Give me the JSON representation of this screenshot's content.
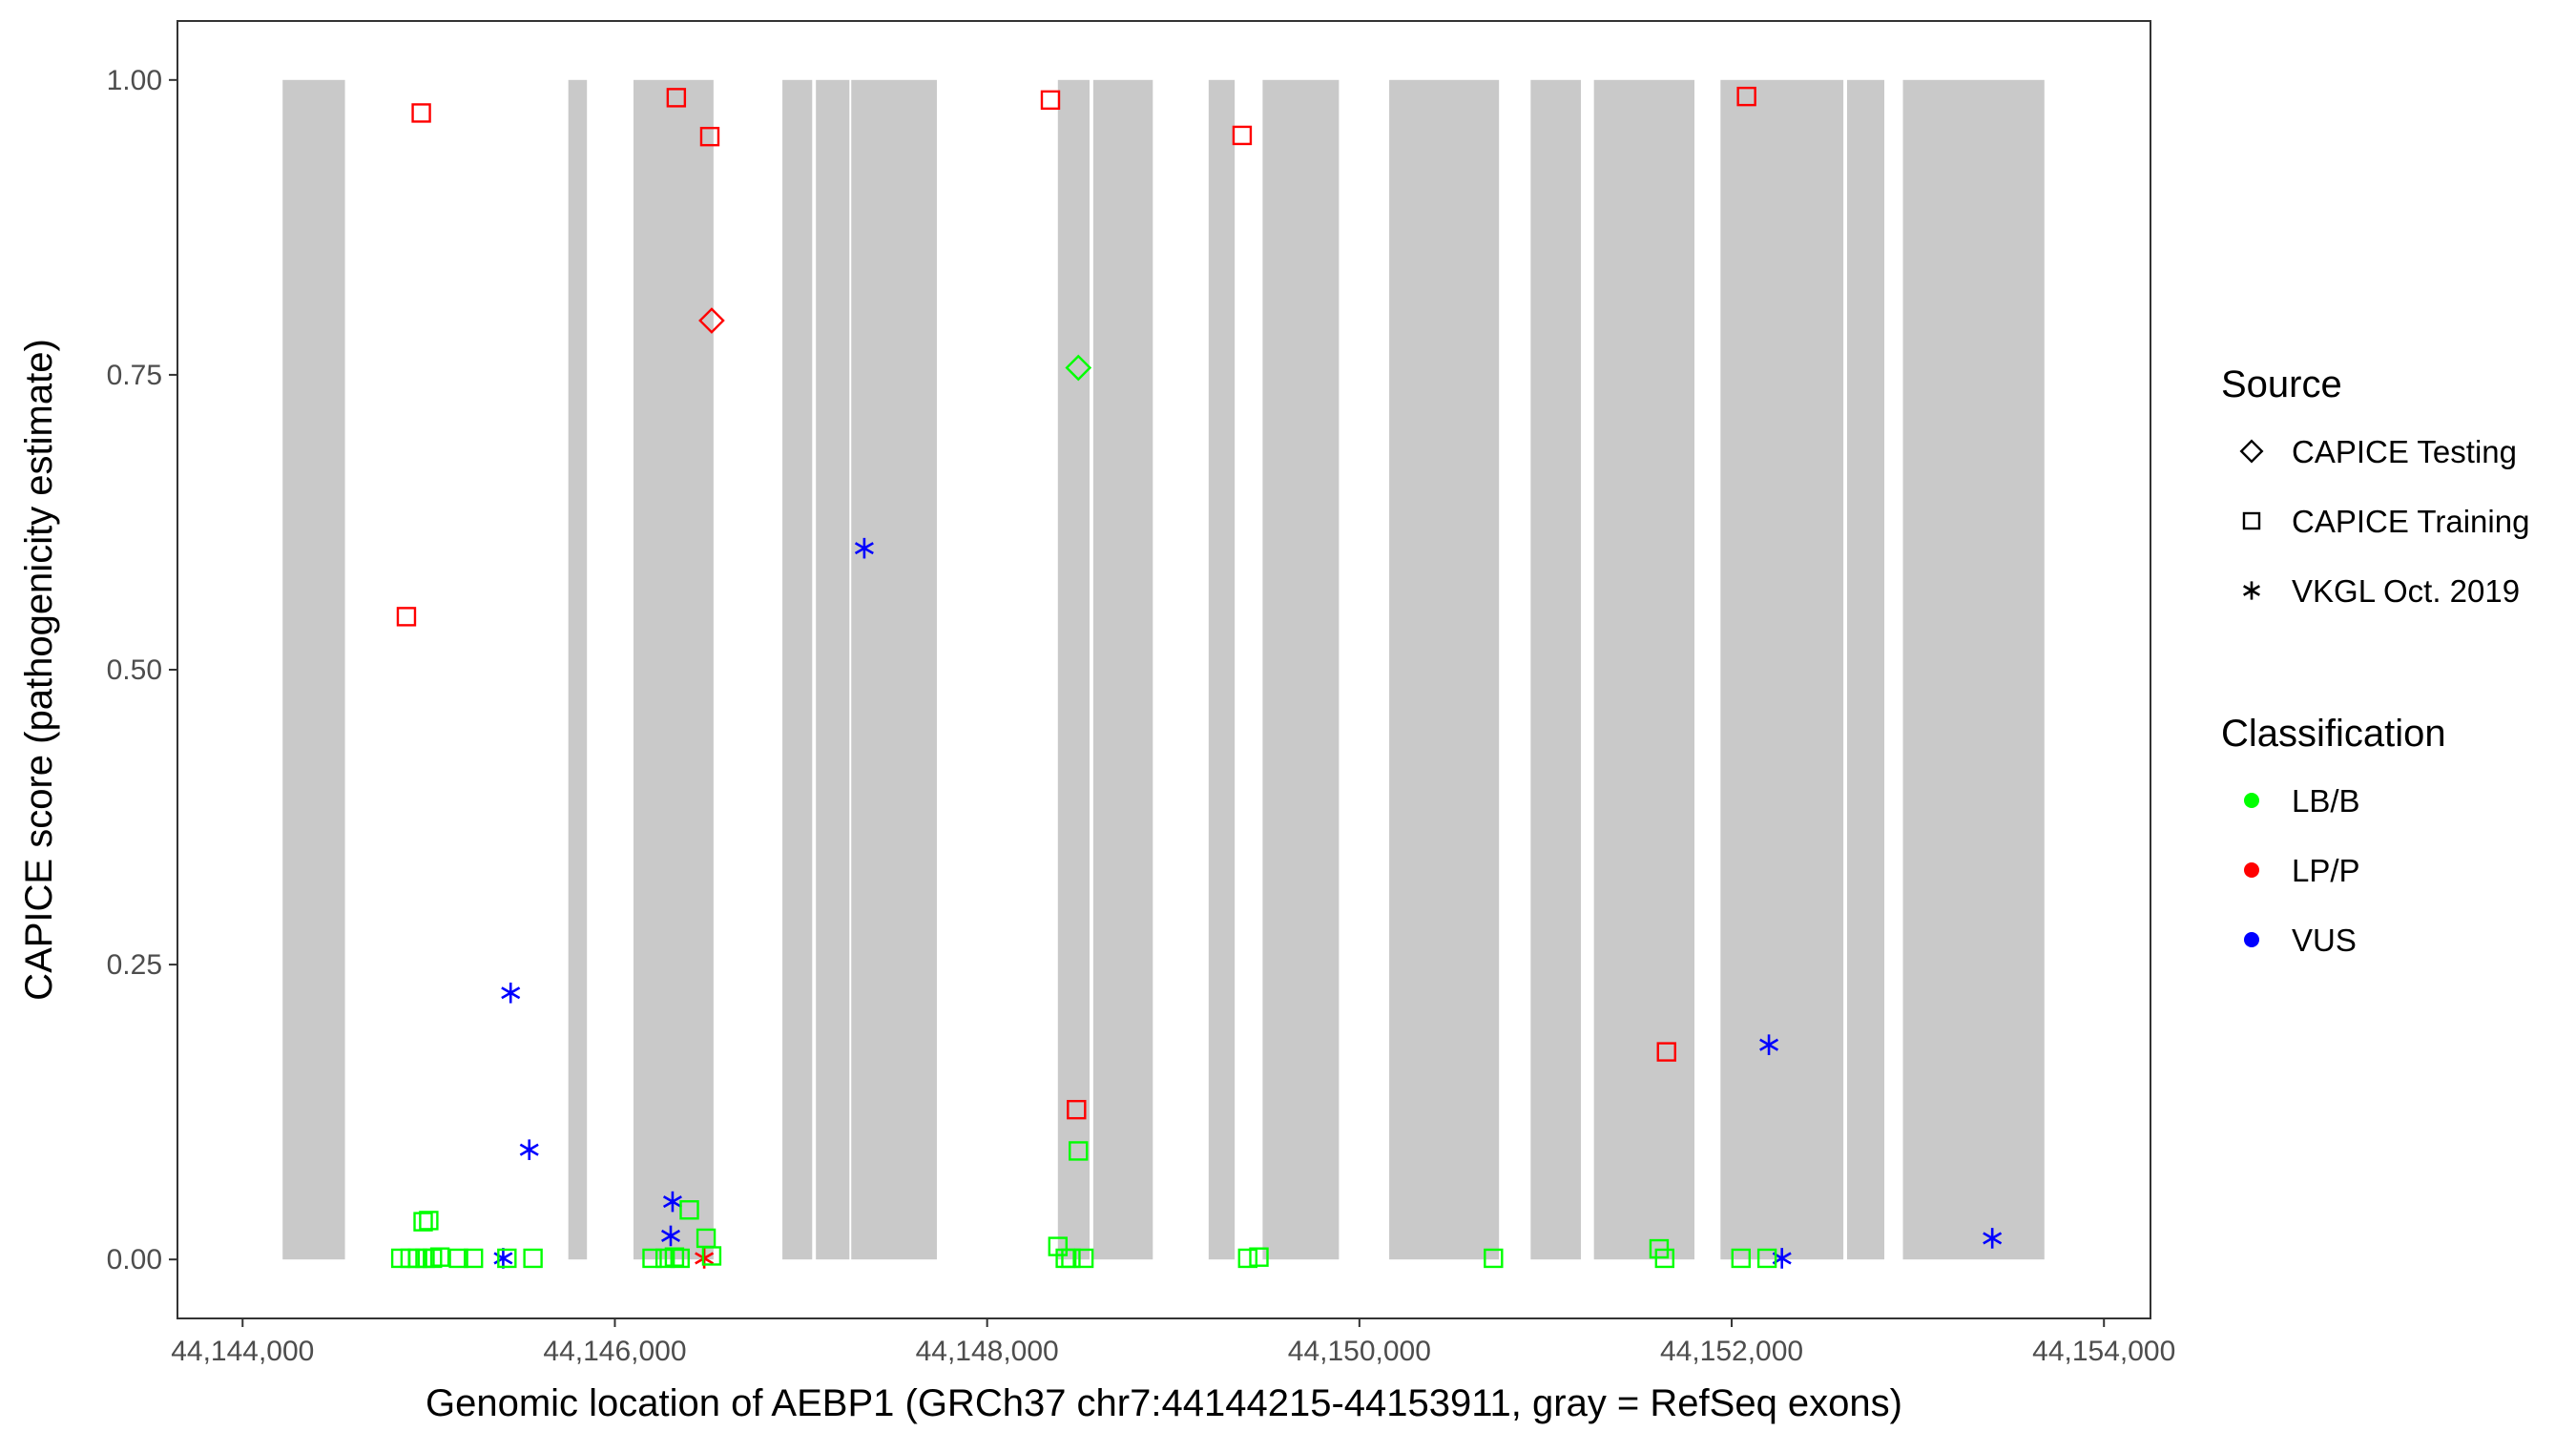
{
  "chart_data": {
    "type": "scatter",
    "title": "",
    "xlabel": "Genomic location of AEBP1 (GRCh37 chr7:44144215-44153911, gray = RefSeq exons)",
    "ylabel": "CAPICE score (pathogenicity estimate)",
    "xlim": [
      44143650,
      44154250
    ],
    "ylim": [
      -0.05,
      1.05
    ],
    "x_ticks": [
      44144000,
      44146000,
      44148000,
      44150000,
      44152000,
      44154000
    ],
    "x_tick_labels": [
      "44,144,000",
      "44,146,000",
      "44,148,000",
      "44,150,000",
      "44,152,000",
      "44,154,000"
    ],
    "y_ticks": [
      0,
      0.25,
      0.5,
      0.75,
      1.0
    ],
    "y_tick_labels": [
      "0.00",
      "0.25",
      "0.50",
      "0.75",
      "1.00"
    ],
    "exons": [
      [
        44144215,
        44144550
      ],
      [
        44145750,
        44145850
      ],
      [
        44146100,
        44146530
      ],
      [
        44146900,
        44147060
      ],
      [
        44147080,
        44147260
      ],
      [
        44147270,
        44147730
      ],
      [
        44148380,
        44148550
      ],
      [
        44148570,
        44148890
      ],
      [
        44149190,
        44149330
      ],
      [
        44149480,
        44149890
      ],
      [
        44150160,
        44150750
      ],
      [
        44150920,
        44151190
      ],
      [
        44151260,
        44151800
      ],
      [
        44151940,
        44152600
      ],
      [
        44152620,
        44152820
      ],
      [
        44152920,
        44153680
      ]
    ],
    "colors": {
      "LB/B": "#00ff00",
      "LP/P": "#ff0000",
      "VUS": "#0000ff",
      "exon": "#c9c9c9"
    },
    "legend": {
      "position": "right",
      "source_title": "Source",
      "source_items": [
        {
          "shape": "diamond",
          "label": "CAPICE Testing"
        },
        {
          "shape": "square",
          "label": "CAPICE Training"
        },
        {
          "shape": "asterisk",
          "label": "VKGL Oct. 2019"
        }
      ],
      "class_title": "Classification",
      "class_items": [
        {
          "key": "LB/B",
          "label": "LB/B"
        },
        {
          "key": "LP/P",
          "label": "LP/P"
        },
        {
          "key": "VUS",
          "label": "VUS"
        }
      ]
    },
    "points": [
      {
        "x": 44144960,
        "y": 0.972,
        "source": "CAPICE Training",
        "class": "LP/P"
      },
      {
        "x": 44144880,
        "y": 0.545,
        "source": "CAPICE Training",
        "class": "LP/P"
      },
      {
        "x": 44146330,
        "y": 0.985,
        "source": "CAPICE Training",
        "class": "LP/P"
      },
      {
        "x": 44146510,
        "y": 0.952,
        "source": "CAPICE Training",
        "class": "LP/P"
      },
      {
        "x": 44148340,
        "y": 0.983,
        "source": "CAPICE Training",
        "class": "LP/P"
      },
      {
        "x": 44149370,
        "y": 0.953,
        "source": "CAPICE Training",
        "class": "LP/P"
      },
      {
        "x": 44152080,
        "y": 0.986,
        "source": "CAPICE Training",
        "class": "LP/P"
      },
      {
        "x": 44148480,
        "y": 0.127,
        "source": "CAPICE Training",
        "class": "LP/P"
      },
      {
        "x": 44151650,
        "y": 0.176,
        "source": "CAPICE Training",
        "class": "LP/P"
      },
      {
        "x": 44146520,
        "y": 0.796,
        "source": "CAPICE Testing",
        "class": "LP/P"
      },
      {
        "x": 44148490,
        "y": 0.756,
        "source": "CAPICE Testing",
        "class": "LB/B"
      },
      {
        "x": 44146480,
        "y": 0.001,
        "source": "VKGL Oct. 2019",
        "class": "LP/P"
      },
      {
        "x": 44147340,
        "y": 0.603,
        "source": "VKGL Oct. 2019",
        "class": "VUS"
      },
      {
        "x": 44145440,
        "y": 0.226,
        "source": "VKGL Oct. 2019",
        "class": "VUS"
      },
      {
        "x": 44145540,
        "y": 0.093,
        "source": "VKGL Oct. 2019",
        "class": "VUS"
      },
      {
        "x": 44146310,
        "y": 0.049,
        "source": "VKGL Oct. 2019",
        "class": "VUS"
      },
      {
        "x": 44146300,
        "y": 0.02,
        "source": "VKGL Oct. 2019",
        "class": "VUS"
      },
      {
        "x": 44145400,
        "y": 0.001,
        "source": "VKGL Oct. 2019",
        "class": "VUS"
      },
      {
        "x": 44152200,
        "y": 0.182,
        "source": "VKGL Oct. 2019",
        "class": "VUS"
      },
      {
        "x": 44152270,
        "y": 0.001,
        "source": "VKGL Oct. 2019",
        "class": "VUS"
      },
      {
        "x": 44153400,
        "y": 0.018,
        "source": "VKGL Oct. 2019",
        "class": "VUS"
      },
      {
        "x": 44144970,
        "y": 0.032,
        "source": "CAPICE Training",
        "class": "LB/B"
      },
      {
        "x": 44145000,
        "y": 0.033,
        "source": "CAPICE Training",
        "class": "LB/B"
      },
      {
        "x": 44144850,
        "y": 0.001,
        "source": "CAPICE Training",
        "class": "LB/B"
      },
      {
        "x": 44144900,
        "y": 0.001,
        "source": "CAPICE Training",
        "class": "LB/B"
      },
      {
        "x": 44144940,
        "y": 0.001,
        "source": "CAPICE Training",
        "class": "LB/B"
      },
      {
        "x": 44144980,
        "y": 0.001,
        "source": "CAPICE Training",
        "class": "LB/B"
      },
      {
        "x": 44145020,
        "y": 0.001,
        "source": "CAPICE Training",
        "class": "LB/B"
      },
      {
        "x": 44145060,
        "y": 0.002,
        "source": "CAPICE Training",
        "class": "LB/B"
      },
      {
        "x": 44145160,
        "y": 0.001,
        "source": "CAPICE Training",
        "class": "LB/B"
      },
      {
        "x": 44145240,
        "y": 0.001,
        "source": "CAPICE Training",
        "class": "LB/B"
      },
      {
        "x": 44145420,
        "y": 0.001,
        "source": "CAPICE Training",
        "class": "LB/B"
      },
      {
        "x": 44145560,
        "y": 0.001,
        "source": "CAPICE Training",
        "class": "LB/B"
      },
      {
        "x": 44146200,
        "y": 0.001,
        "source": "CAPICE Training",
        "class": "LB/B"
      },
      {
        "x": 44146270,
        "y": 0.001,
        "source": "CAPICE Training",
        "class": "LB/B"
      },
      {
        "x": 44146320,
        "y": 0.002,
        "source": "CAPICE Training",
        "class": "LB/B"
      },
      {
        "x": 44146350,
        "y": 0.001,
        "source": "CAPICE Training",
        "class": "LB/B"
      },
      {
        "x": 44146400,
        "y": 0.042,
        "source": "CAPICE Training",
        "class": "LB/B"
      },
      {
        "x": 44146490,
        "y": 0.018,
        "source": "CAPICE Training",
        "class": "LB/B"
      },
      {
        "x": 44146520,
        "y": 0.003,
        "source": "CAPICE Training",
        "class": "LB/B"
      },
      {
        "x": 44148380,
        "y": 0.011,
        "source": "CAPICE Training",
        "class": "LB/B"
      },
      {
        "x": 44148420,
        "y": 0.001,
        "source": "CAPICE Training",
        "class": "LB/B"
      },
      {
        "x": 44148450,
        "y": 0.001,
        "source": "CAPICE Training",
        "class": "LB/B"
      },
      {
        "x": 44148520,
        "y": 0.001,
        "source": "CAPICE Training",
        "class": "LB/B"
      },
      {
        "x": 44148490,
        "y": 0.092,
        "source": "CAPICE Training",
        "class": "LB/B"
      },
      {
        "x": 44149400,
        "y": 0.001,
        "source": "CAPICE Training",
        "class": "LB/B"
      },
      {
        "x": 44149460,
        "y": 0.002,
        "source": "CAPICE Training",
        "class": "LB/B"
      },
      {
        "x": 44150720,
        "y": 0.001,
        "source": "CAPICE Training",
        "class": "LB/B"
      },
      {
        "x": 44151610,
        "y": 0.009,
        "source": "CAPICE Training",
        "class": "LB/B"
      },
      {
        "x": 44151640,
        "y": 0.001,
        "source": "CAPICE Training",
        "class": "LB/B"
      },
      {
        "x": 44152050,
        "y": 0.001,
        "source": "CAPICE Training",
        "class": "LB/B"
      },
      {
        "x": 44152190,
        "y": 0.001,
        "source": "CAPICE Training",
        "class": "LB/B"
      }
    ]
  }
}
